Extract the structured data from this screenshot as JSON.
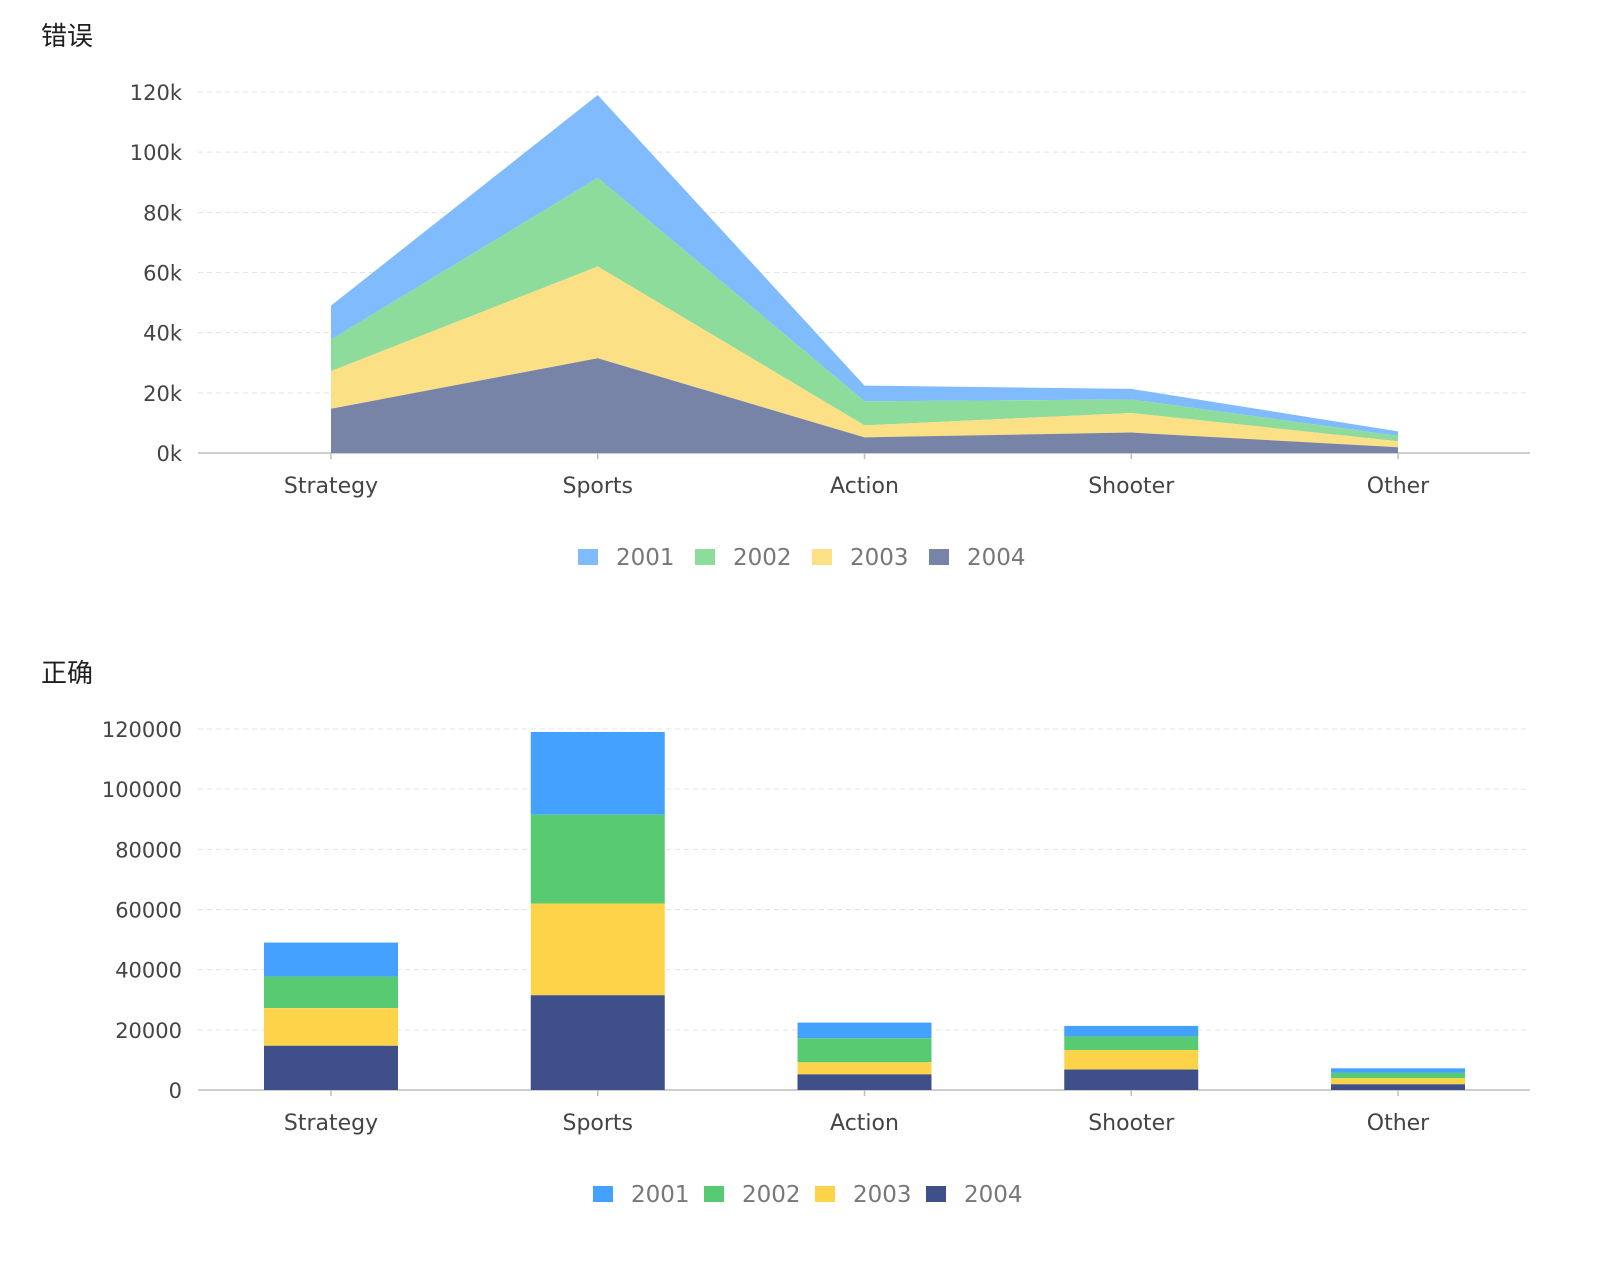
{
  "chart_data": [
    {
      "type": "area",
      "stacked": true,
      "title": "错误",
      "categories": [
        "Strategy",
        "Sports",
        "Action",
        "Shooter",
        "Other"
      ],
      "series": [
        {
          "name": "2001",
          "values": [
            11300,
            27500,
            5200,
            3500,
            1500
          ],
          "color": "#7fbbfd"
        },
        {
          "name": "2002",
          "values": [
            10500,
            29500,
            8000,
            4500,
            1800
          ],
          "color": "#8edc9c"
        },
        {
          "name": "2003",
          "values": [
            12500,
            30500,
            4000,
            6500,
            2000
          ],
          "color": "#fce086"
        },
        {
          "name": "2004",
          "values": [
            14700,
            31500,
            5200,
            6800,
            1900
          ],
          "color": "#7883a8"
        }
      ],
      "yticks": [
        "0k",
        "20k",
        "40k",
        "60k",
        "80k",
        "100k",
        "120k"
      ],
      "ylim": [
        0,
        120000
      ],
      "grid": true,
      "legend": "bottom-center"
    },
    {
      "type": "bar",
      "stacked": true,
      "title": "正确",
      "categories": [
        "Strategy",
        "Sports",
        "Action",
        "Shooter",
        "Other"
      ],
      "series": [
        {
          "name": "2001",
          "values": [
            11300,
            27500,
            5200,
            3500,
            1500
          ],
          "color": "#44a1ff"
        },
        {
          "name": "2002",
          "values": [
            10500,
            29500,
            8000,
            4500,
            1800
          ],
          "color": "#58cb72"
        },
        {
          "name": "2003",
          "values": [
            12500,
            30500,
            4000,
            6500,
            2000
          ],
          "color": "#fdd449"
        },
        {
          "name": "2004",
          "values": [
            14700,
            31500,
            5200,
            6800,
            1900
          ],
          "color": "#3f4f8a"
        }
      ],
      "yticks": [
        "0",
        "20000",
        "40000",
        "60000",
        "80000",
        "100000",
        "120000"
      ],
      "ylim": [
        0,
        120000
      ],
      "grid": true,
      "legend": "bottom-center"
    }
  ]
}
